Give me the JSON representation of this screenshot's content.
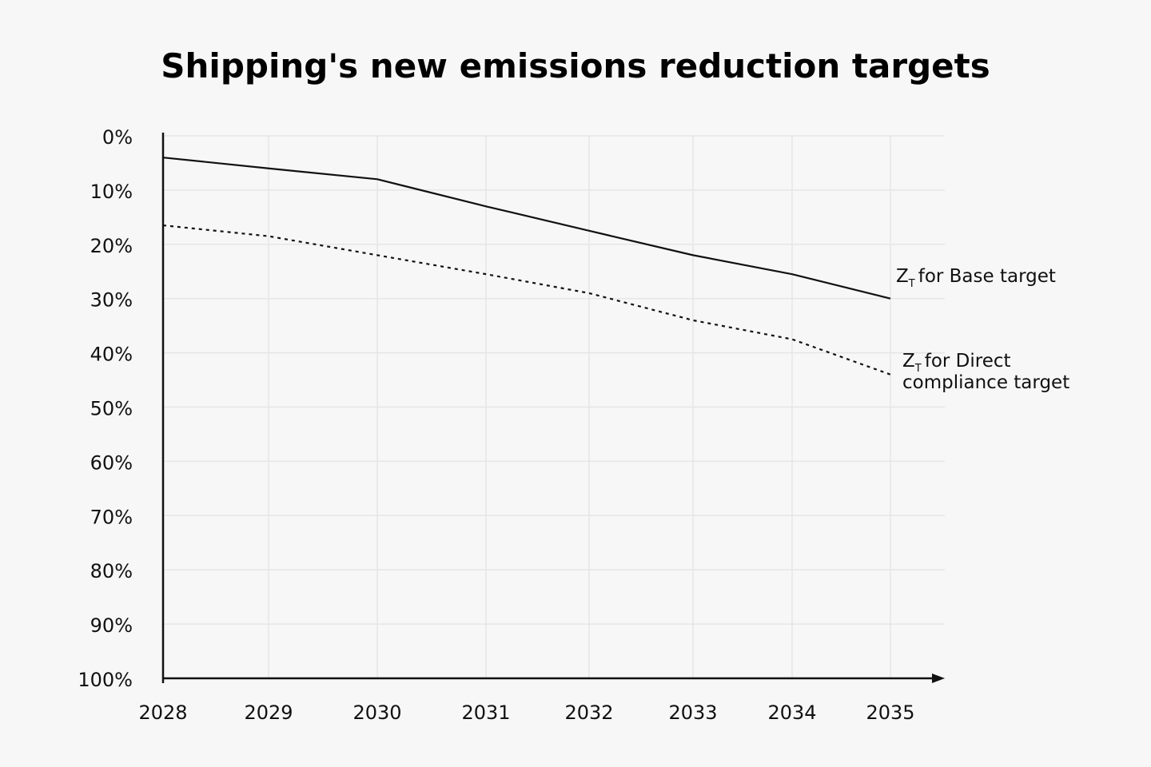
{
  "chart_data": {
    "type": "line",
    "title": "Shipping's new emissions reduction targets",
    "xlabel": "",
    "ylabel": "",
    "x": [
      "2028",
      "2029",
      "2030",
      "2031",
      "2032",
      "2033",
      "2034",
      "2035"
    ],
    "y_ticks": [
      "0%",
      "10%",
      "20%",
      "30%",
      "40%",
      "50%",
      "60%",
      "70%",
      "80%",
      "90%",
      "100%"
    ],
    "ylim": [
      0,
      100
    ],
    "y_inverted": true,
    "grid": true,
    "series": [
      {
        "name": "ZT for Base target",
        "label_prefix": "Z",
        "label_subscript": "T",
        "label_lines": [
          "for Base target"
        ],
        "style": "solid",
        "color": "#111111",
        "values": [
          4,
          6,
          8,
          13,
          17.5,
          22,
          25.5,
          30
        ]
      },
      {
        "name": "ZT for Direct compliance target",
        "label_prefix": "Z",
        "label_subscript": "T",
        "label_lines": [
          "for Direct",
          "compliance target"
        ],
        "style": "dotted",
        "color": "#111111",
        "values": [
          16.5,
          18.5,
          22,
          25.5,
          29,
          34,
          37.5,
          44
        ]
      }
    ]
  }
}
